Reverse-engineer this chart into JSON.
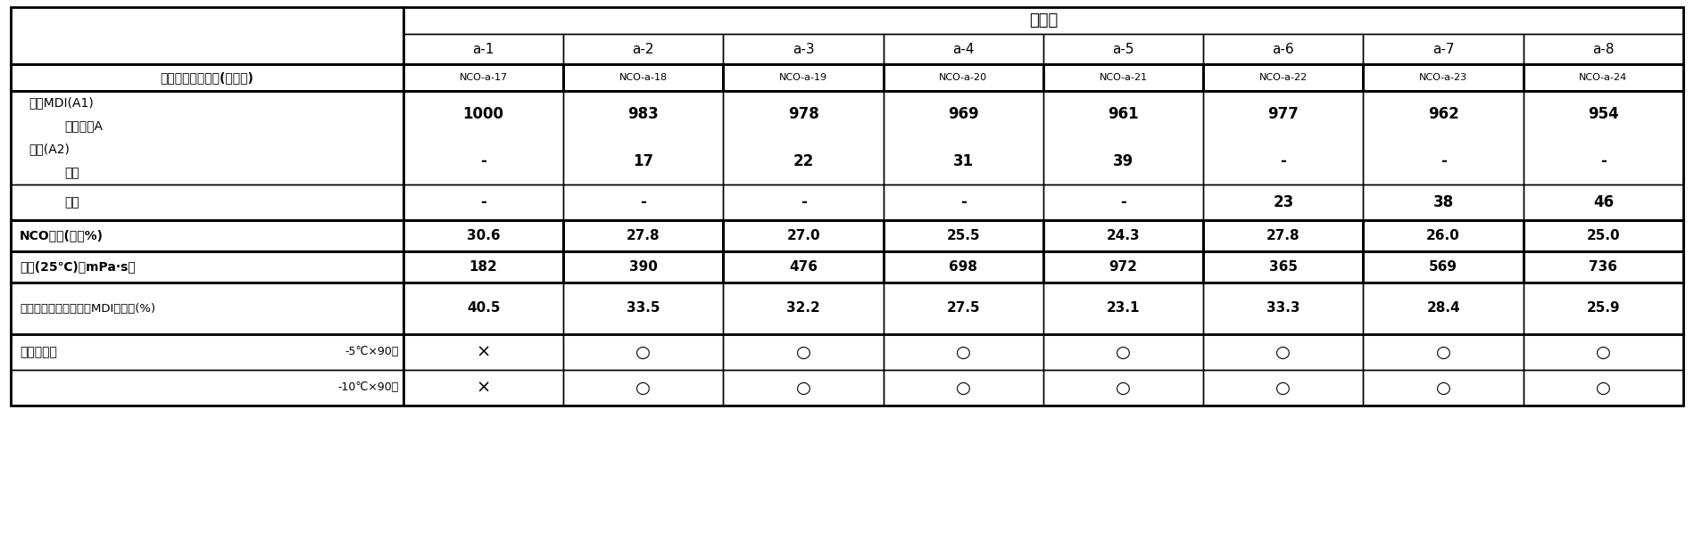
{
  "title": "比较例",
  "col_headers": [
    "a-1",
    "a-2",
    "a-3",
    "a-4",
    "a-5",
    "a-6",
    "a-7",
    "a-8"
  ],
  "sub_headers": [
    "NCO-a-17",
    "NCO-a-18",
    "NCO-a-19",
    "NCO-a-20",
    "NCO-a-21",
    "NCO-a-22",
    "NCO-a-23",
    "NCO-a-24"
  ],
  "mdi_vals": [
    "1000",
    "983",
    "978",
    "969",
    "961",
    "977",
    "962",
    "954"
  ],
  "alc1_vals": [
    "-",
    "17",
    "22",
    "31",
    "39",
    "-",
    "-",
    "-"
  ],
  "alc2_vals": [
    "-",
    "-",
    "-",
    "-",
    "-",
    "23",
    "38",
    "46"
  ],
  "nco_vals": [
    "30.6",
    "27.8",
    "27.0",
    "25.5",
    "24.3",
    "27.8",
    "26.0",
    "25.0"
  ],
  "visc_vals": [
    "182",
    "390",
    "476",
    "698",
    "972",
    "365",
    "569",
    "736"
  ],
  "ratio_vals": [
    "40.5",
    "33.5",
    "32.2",
    "27.5",
    "23.1",
    "33.3",
    "28.4",
    "25.9"
  ],
  "stor1_vals": [
    "×",
    "○",
    "○",
    "○",
    "○",
    "○",
    "○",
    "○"
  ],
  "stor2_vals": [
    "×",
    "○",
    "○",
    "○",
    "○",
    "○",
    "○",
    "○"
  ],
  "label_polyiso": "多异氰酸酯组合物(质量份)",
  "label_polymer_mdi": "聚合MDI(A1)",
  "label_iso_a": "异氰酸酯A",
  "label_alcohol": "醇类(A2)",
  "label_methanol": "甲醇",
  "label_ethanol": "乙醇",
  "label_nco": "NCO含量(质量%)",
  "label_viscosity": "粘度(25℃)（mPa·s）",
  "label_mdi_ratio": "多异氰酸酯组合物中的MDI的比例(%)",
  "label_storage": "储存稳定性",
  "label_stor1": "-5℃×90天",
  "label_stor2": "-10℃×90天",
  "bg_color": "#ffffff"
}
